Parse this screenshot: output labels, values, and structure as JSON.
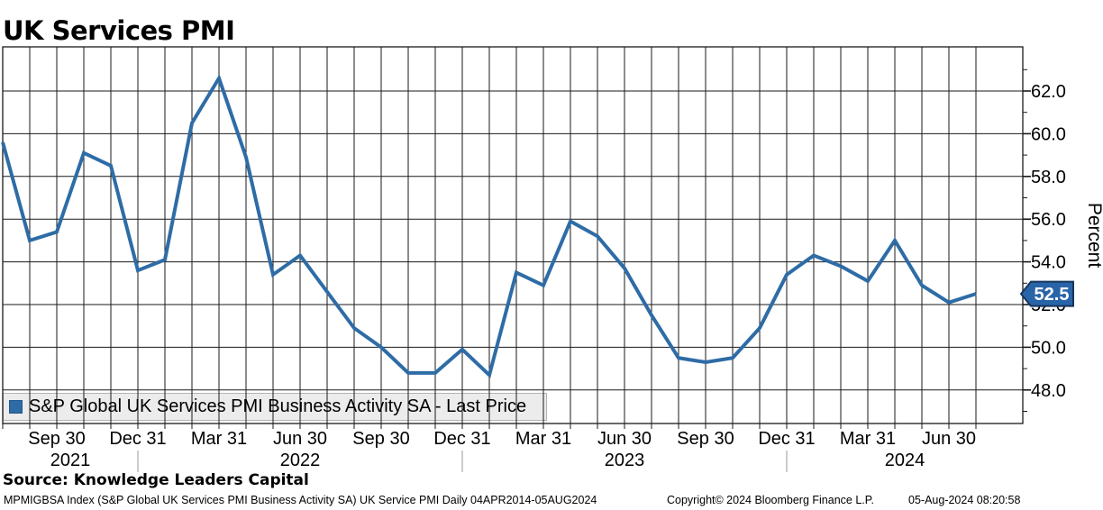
{
  "title": "UK Services PMI",
  "legend": {
    "label": "S&P Global UK Services PMI Business Activity SA - Last Price"
  },
  "source_line": "Source: Knowledge Leaders Capital",
  "footer": {
    "left": "MPMIGBSA Index (S&P Global UK Services PMI Business Activity SA) UK Service PMI  Daily 04APR2014-05AUG2024",
    "center": "Copyright© 2024 Bloomberg Finance L.P.",
    "right": "05-Aug-2024 08:20:58"
  },
  "y_axis": {
    "label": "Percent",
    "ticks": [
      "62.0",
      "60.0",
      "58.0",
      "56.0",
      "54.0",
      "52.0",
      "50.0",
      "48.0"
    ],
    "last_price": "52.5"
  },
  "colors": {
    "line": "#2e6ca6",
    "grid": "#1a1a1a",
    "badge_fill": "#2a64a8",
    "badge_border": "#16355c",
    "year_separator": "#999999",
    "legend_band_bg": "#ececec"
  },
  "chart_data": {
    "type": "line",
    "title": "UK Services PMI",
    "xlabel": "",
    "ylabel": "Percent",
    "legend_position": "bottom-left",
    "grid": true,
    "ylim": [
      46.4,
      64.1
    ],
    "y_ticks": [
      48,
      50,
      52,
      54,
      56,
      58,
      60,
      62
    ],
    "y_minor_tick_step": 1,
    "series_name": "S&P Global UK Services PMI Business Activity SA - Last Price",
    "x": [
      "Jul 2021",
      "Aug 2021",
      "Sep 2021",
      "Oct 2021",
      "Nov 2021",
      "Dec 2021",
      "Jan 2022",
      "Feb 2022",
      "Mar 2022",
      "Apr 2022",
      "May 2022",
      "Jun 2022",
      "Jul 2022",
      "Aug 2022",
      "Sep 2022",
      "Oct 2022",
      "Nov 2022",
      "Dec 2022",
      "Jan 2023",
      "Feb 2023",
      "Mar 2023",
      "Apr 2023",
      "May 2023",
      "Jun 2023",
      "Jul 2023",
      "Aug 2023",
      "Sep 2023",
      "Oct 2023",
      "Nov 2023",
      "Dec 2023",
      "Jan 2024",
      "Feb 2024",
      "Mar 2024",
      "Apr 2024",
      "May 2024",
      "Jun 2024",
      "Jul 2024"
    ],
    "values": [
      59.6,
      55.0,
      55.4,
      59.1,
      58.5,
      53.6,
      54.1,
      60.5,
      62.6,
      58.9,
      53.4,
      54.3,
      52.6,
      50.9,
      50.0,
      48.8,
      48.8,
      49.9,
      48.7,
      53.5,
      52.9,
      55.9,
      55.2,
      53.7,
      51.5,
      49.5,
      49.3,
      49.5,
      50.9,
      53.4,
      54.3,
      53.8,
      53.1,
      55.0,
      52.9,
      52.1,
      52.5
    ],
    "last_price": 52.5,
    "x_ticks": [
      {
        "month_index": 2,
        "label": "Sep 30"
      },
      {
        "month_index": 5,
        "label": "Dec 31"
      },
      {
        "month_index": 8,
        "label": "Mar 31"
      },
      {
        "month_index": 11,
        "label": "Jun 30"
      },
      {
        "month_index": 14,
        "label": "Sep 30"
      },
      {
        "month_index": 17,
        "label": "Dec 31"
      },
      {
        "month_index": 20,
        "label": "Mar 31"
      },
      {
        "month_index": 23,
        "label": "Jun 30"
      },
      {
        "month_index": 26,
        "label": "Sep 30"
      },
      {
        "month_index": 29,
        "label": "Dec 31"
      },
      {
        "month_index": 32,
        "label": "Mar 31"
      },
      {
        "month_index": 35,
        "label": "Jun 30"
      }
    ],
    "year_separator_month_index": [
      5,
      17,
      29
    ],
    "year_labels": [
      "2021",
      "2022",
      "2023",
      "2024"
    ]
  }
}
